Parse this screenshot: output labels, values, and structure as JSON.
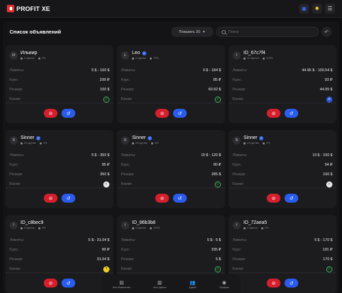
{
  "app": {
    "logo_text": "PROFIT XE"
  },
  "topbar": {
    "icons": [
      "wallet-icon",
      "sun-icon",
      "menu-icon"
    ]
  },
  "header": {
    "title": "Список объявлений",
    "show_select": "Показать 20",
    "search_placeholder": "Поиск"
  },
  "labels": {
    "limits": "Лимиты:",
    "rate": "Курс:",
    "reserve": "Резерв:",
    "banks": "Банки:"
  },
  "cards": [
    {
      "avatar": "И",
      "name": "Ильвир",
      "verified": false,
      "stat_a": "0 сделок",
      "stat_b": "0%",
      "limits": "5 $ - 100 $",
      "rate": "200 ₽",
      "reserve": "100 $",
      "bank_icon": "sberbank-icon"
    },
    {
      "avatar": "L",
      "name": "Leo",
      "verified": true,
      "stat_a": "4 сделки",
      "stat_b": "75%",
      "limits": "0 $ - 184 $",
      "rate": "85 ₽",
      "reserve": "60.92 $",
      "bank_icon": "sberbank-icon"
    },
    {
      "avatar": "I",
      "name": "ID_67c7f4",
      "verified": false,
      "stat_a": "12 сделок",
      "stat_b": "100%",
      "limits": "44.95 $ - 100.54 $",
      "rate": "93 ₽",
      "reserve": "44.95 $",
      "bank_icon": "vtb-icon"
    },
    {
      "avatar": "S",
      "name": "Sinner",
      "verified": true,
      "stat_a": "23 сделки",
      "stat_b": "4%",
      "limits": "5 $ - 350 $",
      "rate": "95 ₽",
      "reserve": "350 $",
      "bank_icon": "multi-bank-icon"
    },
    {
      "avatar": "S",
      "name": "Sinner",
      "verified": true,
      "stat_a": "23 сделки",
      "stat_b": "4%",
      "limits": "15 $ - 120 $",
      "rate": "90 ₽",
      "reserve": "285 $",
      "bank_icon": "sberbank-icon"
    },
    {
      "avatar": "S",
      "name": "Sinner",
      "verified": true,
      "stat_a": "23 сделки",
      "stat_b": "4%",
      "limits": "10 $ - 100 $",
      "rate": "94 ₽",
      "reserve": "100 $",
      "bank_icon": "multi-bank-icon"
    },
    {
      "avatar": "I",
      "name": "ID_c8bec9",
      "verified": false,
      "stat_a": "0 сделок",
      "stat_b": "0%",
      "limits": "5 $ - 31.04 $",
      "rate": "90 ₽",
      "reserve": "31.04 $",
      "bank_icon": "tinkoff-icon"
    },
    {
      "avatar": "I",
      "name": "ID_86b3b8",
      "verified": false,
      "stat_a": "3 сделки",
      "stat_b": "100%",
      "limits": "5 $ - 5 $",
      "rate": "155 ₽",
      "reserve": "5 $",
      "bank_icon": "sberbank-icon"
    },
    {
      "avatar": "I",
      "name": "ID_72aea5",
      "verified": false,
      "stat_a": "0 сделок",
      "stat_b": "0%",
      "limits": "5 $ - 170 $",
      "rate": "101 ₽",
      "reserve": "170 $",
      "bank_icon": "sberbank-icon"
    }
  ],
  "bottom_nav": [
    {
      "label": "Все объявления",
      "icon": "list-icon",
      "active": false
    },
    {
      "label": "Мои сделки",
      "icon": "deals-icon",
      "active": false
    },
    {
      "label": "Админ",
      "icon": "users-icon",
      "active": true
    },
    {
      "label": "Профиль",
      "icon": "profile-icon",
      "active": false
    }
  ],
  "colors": {
    "accent": "#2a5cf0",
    "danger": "#d61f2c",
    "background": "#0f0f11",
    "card": "#1c1c1f"
  }
}
